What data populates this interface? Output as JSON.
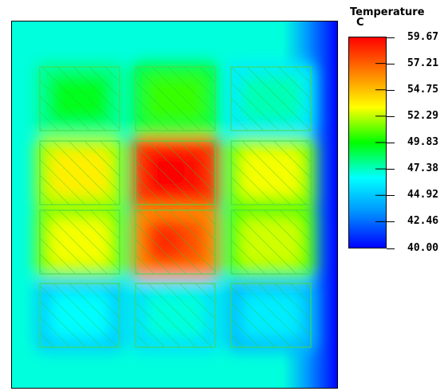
{
  "chart_data": {
    "type": "heatmap",
    "title": "",
    "colorbar": {
      "label": "Temperature",
      "unit": "C",
      "ticks": [
        "59.67",
        "57.21",
        "54.75",
        "52.29",
        "49.83",
        "47.38",
        "44.92",
        "42.46",
        "40.00"
      ],
      "range": [
        40.0,
        59.67
      ],
      "colormap": [
        "#0000ff",
        "#0090ff",
        "#00ffff",
        "#00ff00",
        "#ffff00",
        "#ff8000",
        "#ff0000"
      ]
    },
    "grid": {
      "rows": 4,
      "cols": 3
    },
    "cell_temperatures": [
      [
        49.5,
        50.5,
        47.5
      ],
      [
        53.5,
        59.5,
        53.0
      ],
      [
        53.0,
        57.5,
        52.5
      ],
      [
        46.5,
        47.0,
        46.0
      ]
    ],
    "background_temperature": 47.0,
    "colors": {
      "frame": "#000000",
      "hatch": "#2fc72f",
      "cell_border": "#48d848"
    }
  }
}
